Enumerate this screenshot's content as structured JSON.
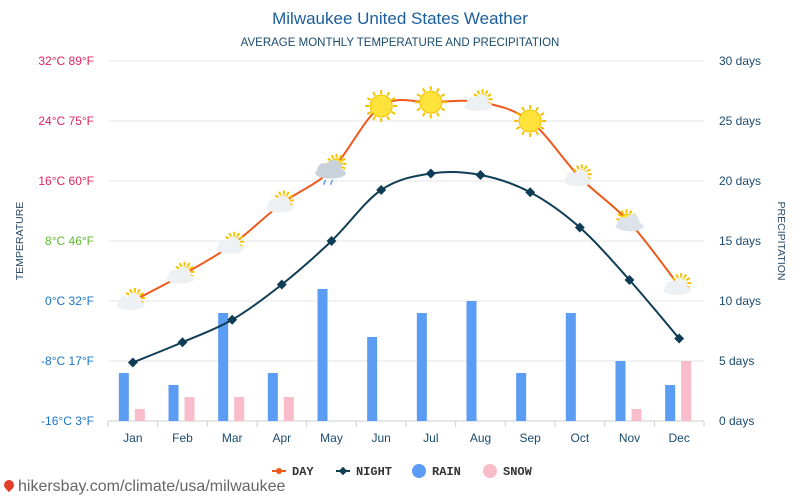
{
  "chart_data": {
    "type": "line+bar",
    "title": "Milwaukee United States Weather",
    "subtitle": "AVERAGE MONTHLY TEMPERATURE AND PRECIPITATION",
    "ylabel_left": "TEMPERATURE",
    "ylabel_right": "PRECIPITATION",
    "categories": [
      "Jan",
      "Feb",
      "Mar",
      "Apr",
      "May",
      "Jun",
      "Jul",
      "Aug",
      "Sep",
      "Oct",
      "Nov",
      "Dec"
    ],
    "left_axis": {
      "ylim": [
        -16,
        32
      ],
      "ticks": [
        {
          "value": 32,
          "label": "32°C 89°F",
          "color": "#e0245e"
        },
        {
          "value": 24,
          "label": "24°C 75°F",
          "color": "#e0245e"
        },
        {
          "value": 16,
          "label": "16°C 60°F",
          "color": "#e0245e"
        },
        {
          "value": 8,
          "label": "8°C 46°F",
          "color": "#5dbb2f"
        },
        {
          "value": 0,
          "label": "0°C 32°F",
          "color": "#1a75c7"
        },
        {
          "value": -8,
          "label": "-8°C 17°F",
          "color": "#1a75c7"
        },
        {
          "value": -16,
          "label": "-16°C 3°F",
          "color": "#1a75c7"
        }
      ]
    },
    "right_axis": {
      "ylim": [
        0,
        30
      ],
      "ticks": [
        {
          "value": 30,
          "label": "30 days"
        },
        {
          "value": 25,
          "label": "25 days"
        },
        {
          "value": 20,
          "label": "20 days"
        },
        {
          "value": 15,
          "label": "15 days"
        },
        {
          "value": 10,
          "label": "10 days"
        },
        {
          "value": 5,
          "label": "5 days"
        },
        {
          "value": 0,
          "label": "0 days"
        }
      ]
    },
    "series": [
      {
        "name": "DAY",
        "type": "line",
        "axis": "left",
        "color": "#ee5a1c",
        "smooth": true,
        "values": [
          0,
          3.5,
          7.5,
          13,
          17.5,
          26,
          26.5,
          26.5,
          24,
          16.5,
          10.5,
          2
        ]
      },
      {
        "name": "NIGHT",
        "type": "line",
        "axis": "left",
        "color": "#0f3d55",
        "smooth": true,
        "values": [
          -8.2,
          -5.5,
          -2.5,
          2.2,
          8,
          14.8,
          17,
          16.8,
          14.5,
          9.8,
          2.8,
          -5
        ]
      },
      {
        "name": "RAIN",
        "type": "bar",
        "axis": "right",
        "color": "#5b9cf5",
        "values": [
          4,
          3,
          9,
          4,
          11,
          7,
          9,
          10,
          4,
          9,
          5,
          3
        ]
      },
      {
        "name": "SNOW",
        "type": "bar",
        "axis": "right",
        "color": "#f8bccb",
        "values": [
          1,
          2,
          2,
          2,
          0,
          0,
          0,
          0,
          0,
          0,
          1,
          5
        ]
      }
    ],
    "weather_icons": [
      "sun-cloud",
      "sun-cloud",
      "sun-cloud",
      "sun-cloud",
      "cloud-rain",
      "sun",
      "sun",
      "sun-cloud",
      "sun",
      "sun-cloud",
      "cloud-sun",
      "sun-cloud"
    ],
    "legend_position": "bottom-center"
  },
  "watermark": "hikersbay.com/climate/usa/milwaukee",
  "colors": {
    "title": "#1a5f9c",
    "subtitle": "#1a4a6e",
    "axis_label": "#2b4a66",
    "right_tick": "#1a4a6e",
    "x_tick": "#1a4a6e",
    "grid": "#e6e6e6"
  }
}
